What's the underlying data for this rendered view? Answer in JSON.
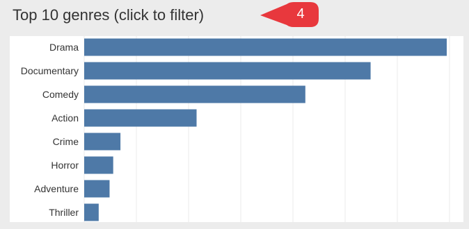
{
  "panel": {
    "title": "Top 10 genres (click to filter)"
  },
  "callout": {
    "number": "4",
    "color": "#e8383d"
  },
  "chart_data": {
    "type": "bar",
    "orientation": "horizontal",
    "title": "Top 10 genres (click to filter)",
    "categories": [
      "Drama",
      "Documentary",
      "Comedy",
      "Action",
      "Crime",
      "Horror",
      "Adventure",
      "Thriller"
    ],
    "values": [
      100,
      79,
      61,
      31,
      10,
      8,
      7,
      4
    ],
    "xlim": [
      0,
      100
    ],
    "bar_color": "#4e79a7",
    "grid": true,
    "xlabel": "",
    "ylabel": ""
  }
}
